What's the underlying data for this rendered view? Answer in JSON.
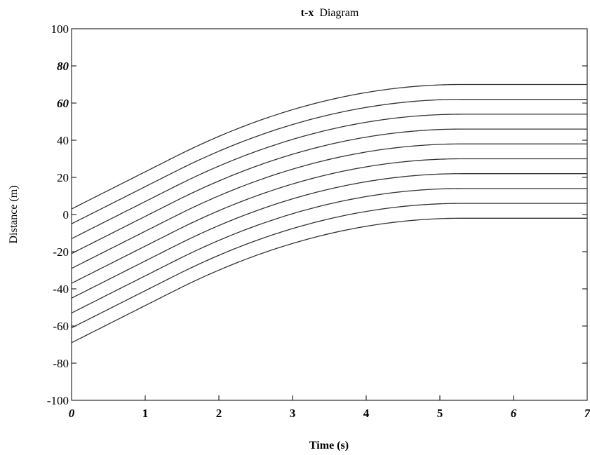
{
  "chart_data": {
    "type": "line",
    "title_bold": "t-x",
    "title_rest": "Diagram",
    "xlabel": "Time (s)",
    "ylabel": "Distance (m)",
    "xlim": [
      0,
      7
    ],
    "ylim": [
      -100,
      100
    ],
    "xticks": [
      "0",
      "1",
      "2",
      "3",
      "4",
      "5",
      "6",
      "7"
    ],
    "yticks": [
      "100",
      "80",
      "60",
      "40",
      "20",
      "0",
      "-20",
      "-40",
      "-60",
      "-80",
      "-100"
    ],
    "grid": false,
    "line_color": "#333333",
    "axis_color": "#000000",
    "curve_model": {
      "initial_speed_m_per_s": 20,
      "decel_start_s": 1.4,
      "stop_time_s": 5.3,
      "end_time_s": 7
    },
    "series": [
      {
        "x0": 3
      },
      {
        "x0": -5
      },
      {
        "x0": -13
      },
      {
        "x0": -21
      },
      {
        "x0": -29
      },
      {
        "x0": -37
      },
      {
        "x0": -45
      },
      {
        "x0": -53
      },
      {
        "x0": -61
      },
      {
        "x0": -69
      }
    ]
  }
}
